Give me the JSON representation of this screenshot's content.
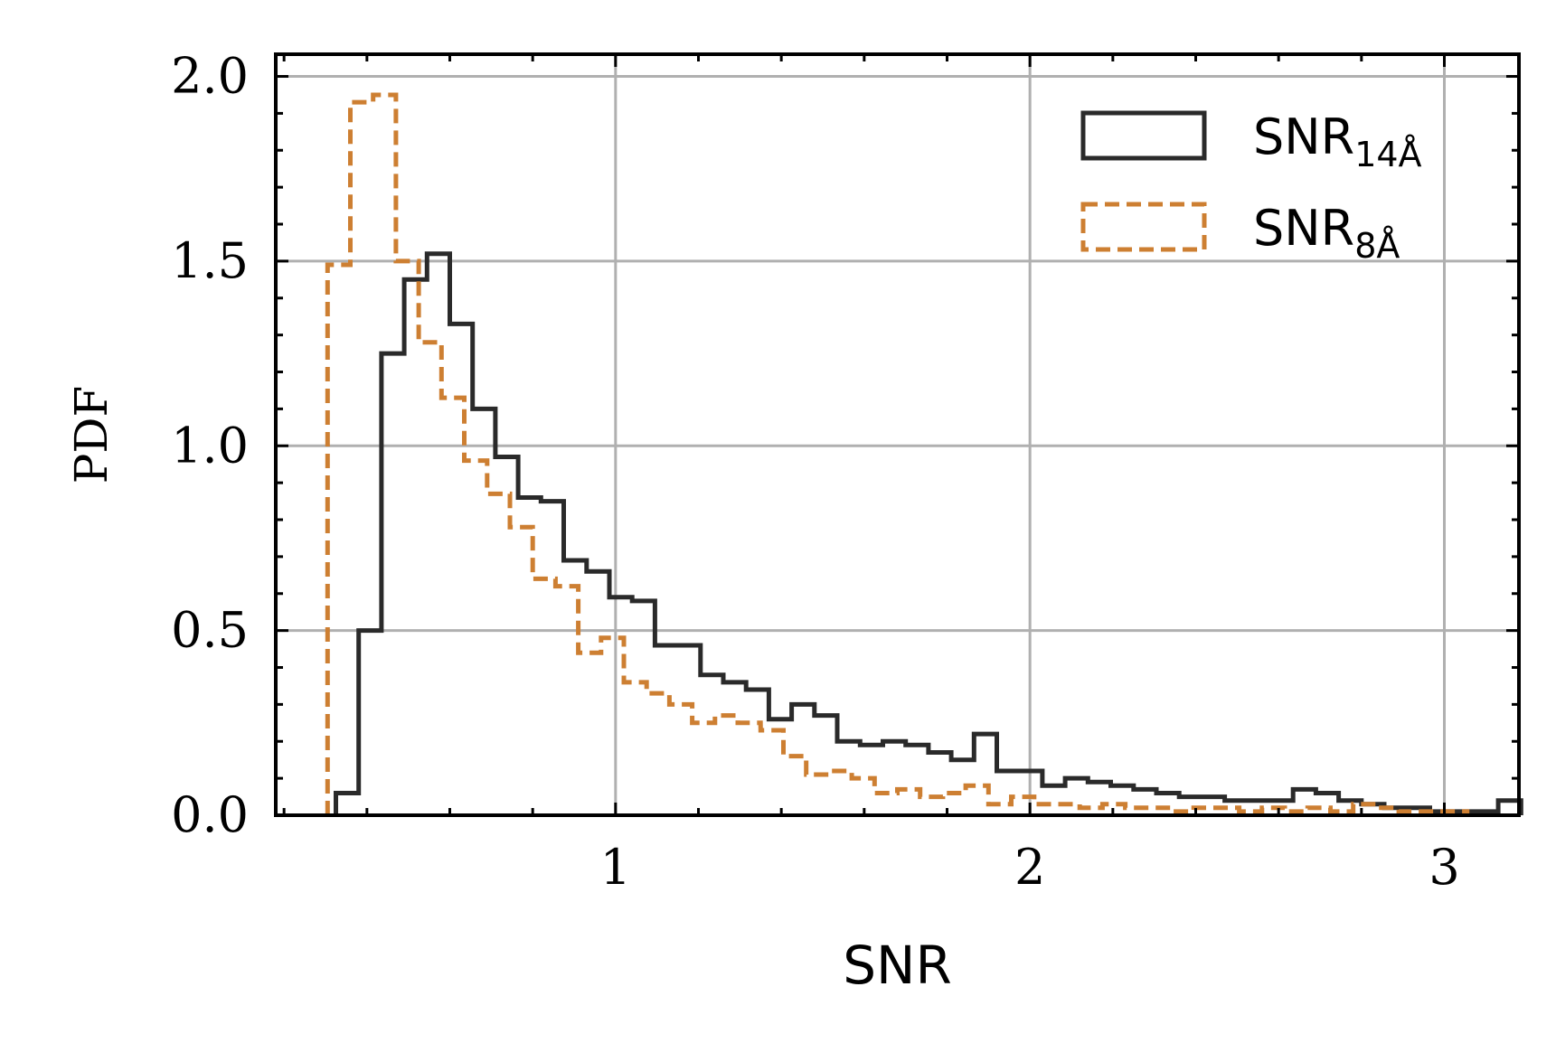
{
  "chart_data": {
    "type": "histogram-step",
    "xlabel": "SNR",
    "ylabel": "PDF",
    "xlim": [
      0.18,
      3.18
    ],
    "ylim": [
      0,
      2.06
    ],
    "xticks": [
      1,
      2,
      3
    ],
    "xtick_labels": [
      "1",
      "2",
      "3"
    ],
    "yticks": [
      0.0,
      0.5,
      1.0,
      1.5,
      2.0
    ],
    "ytick_labels": [
      "0.0",
      "0.5",
      "1.0",
      "1.5",
      "2.0"
    ],
    "grid": true,
    "legend_position": "top-right",
    "bin_width": 0.055,
    "series": [
      {
        "name": "SNR",
        "subscript": "14Å",
        "style": "solid",
        "color": "#2a2a2a",
        "x_start": 0.325,
        "values": [
          0.06,
          0.5,
          1.25,
          1.45,
          1.52,
          1.33,
          1.1,
          0.97,
          0.86,
          0.85,
          0.69,
          0.66,
          0.59,
          0.58,
          0.46,
          0.46,
          0.38,
          0.36,
          0.34,
          0.26,
          0.3,
          0.27,
          0.2,
          0.19,
          0.2,
          0.19,
          0.17,
          0.15,
          0.22,
          0.12,
          0.12,
          0.08,
          0.1,
          0.09,
          0.08,
          0.07,
          0.06,
          0.05,
          0.05,
          0.04,
          0.04,
          0.04,
          0.07,
          0.06,
          0.04,
          0.03,
          0.02,
          0.02,
          0.01,
          0.01,
          0.01,
          0.04
        ]
      },
      {
        "name": "SNR",
        "subscript": "8Å",
        "style": "dashed",
        "color": "#cd7f32",
        "x_start": 0.14,
        "values": [
          0.0,
          0.0,
          0.0,
          1.49,
          1.93,
          1.95,
          1.5,
          1.28,
          1.13,
          0.96,
          0.87,
          0.78,
          0.64,
          0.62,
          0.44,
          0.48,
          0.36,
          0.33,
          0.3,
          0.25,
          0.27,
          0.25,
          0.23,
          0.16,
          0.11,
          0.12,
          0.1,
          0.06,
          0.07,
          0.05,
          0.06,
          0.08,
          0.03,
          0.05,
          0.03,
          0.03,
          0.02,
          0.03,
          0.02,
          0.02,
          0.01,
          0.02,
          0.02,
          0.01,
          0.02,
          0.01,
          0.02,
          0.01,
          0.03,
          0.02,
          0.01,
          0.01,
          0.01
        ]
      }
    ]
  }
}
